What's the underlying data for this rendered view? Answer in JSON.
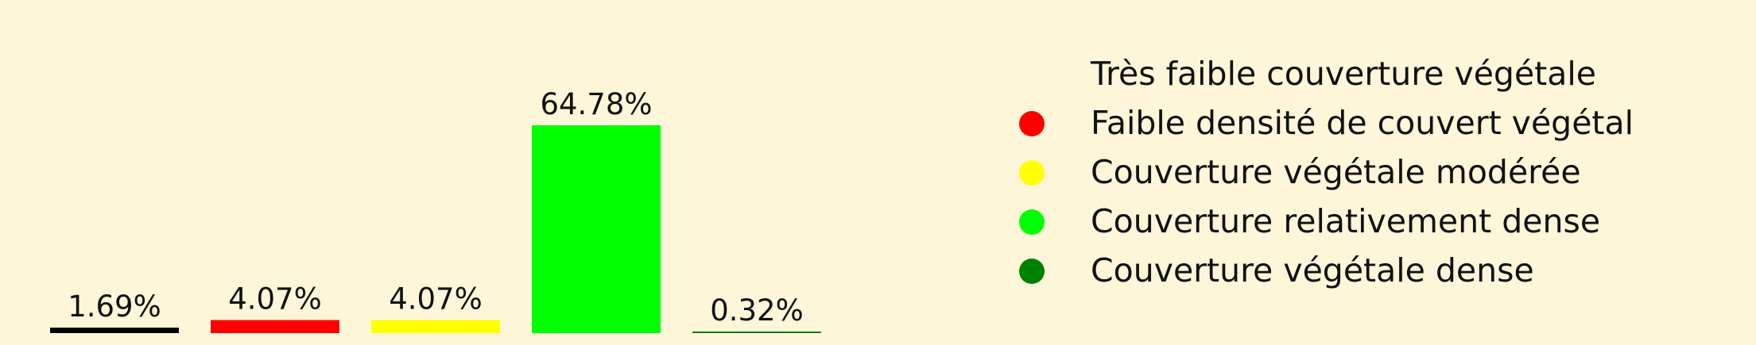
{
  "chart_data": {
    "type": "bar",
    "categories": [
      "Très faible couverture végétale",
      "Faible densité de couvert végétal",
      "Couverture végétale modérée",
      "Couverture relativement dense",
      "Couverture végétale dense"
    ],
    "values": [
      1.69,
      4.07,
      4.07,
      64.78,
      0.32
    ],
    "data_labels": [
      "1.69%",
      "4.07%",
      "4.07%",
      "64.78%",
      "0.32%"
    ],
    "colors": [
      "#000000",
      "#ff0000",
      "#ffff00",
      "#00ff00",
      "#008000"
    ],
    "ylim": [
      0,
      70
    ],
    "grid": false,
    "legend_position": "right",
    "background": "#fdf6d9"
  }
}
